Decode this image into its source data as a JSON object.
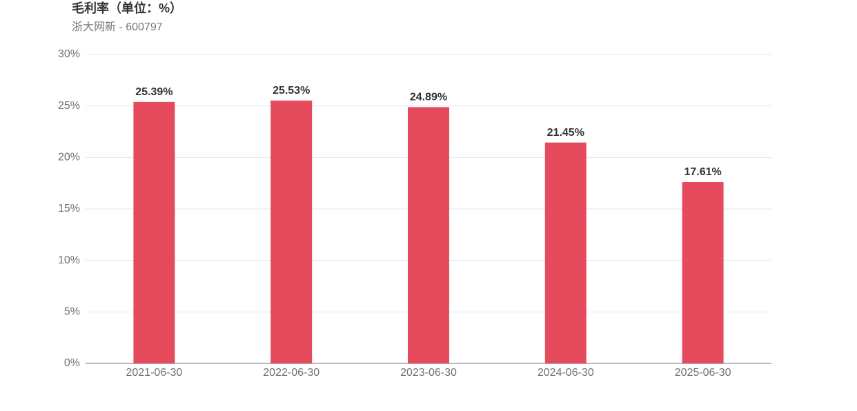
{
  "chart_data": {
    "type": "bar",
    "title": "毛利率（单位：%）",
    "subtitle": "浙大网新 - 600797",
    "categories": [
      "2021-06-30",
      "2022-06-30",
      "2023-06-30",
      "2024-06-30",
      "2025-06-30"
    ],
    "values": [
      25.39,
      25.53,
      24.89,
      21.45,
      17.61
    ],
    "value_labels": [
      "25.39%",
      "25.53%",
      "24.89%",
      "21.45%",
      "17.61%"
    ],
    "color": "#e54b5d",
    "ylim": [
      0,
      30
    ],
    "yticks": [
      {
        "value": 0,
        "label": "0%"
      },
      {
        "value": 5,
        "label": "5%"
      },
      {
        "value": 10,
        "label": "10%"
      },
      {
        "value": 15,
        "label": "15%"
      },
      {
        "value": 20,
        "label": "20%"
      },
      {
        "value": 25,
        "label": "25%"
      },
      {
        "value": 30,
        "label": "30%"
      }
    ],
    "grid": true
  }
}
